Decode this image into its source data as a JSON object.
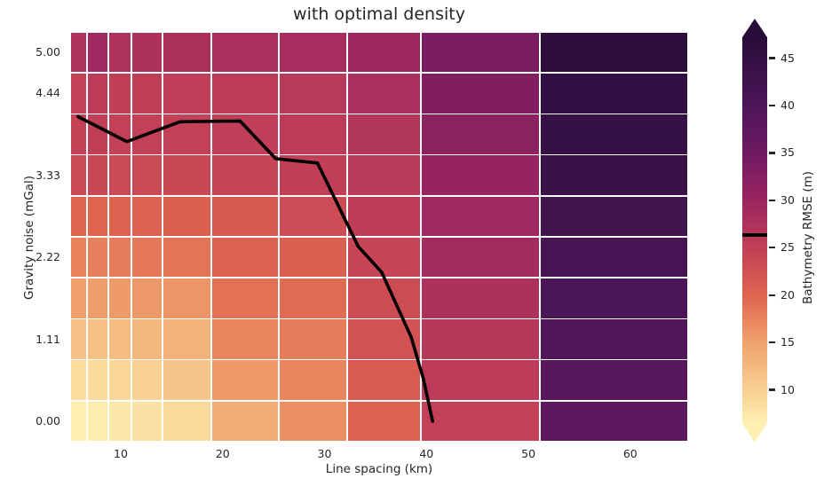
{
  "title": "with optimal density",
  "axes": {
    "xlabel": "Line spacing (km)",
    "ylabel": "Gravity noise (mGal)",
    "x_ticks": [
      {
        "value": 10,
        "label": "10"
      },
      {
        "value": 20,
        "label": "20"
      },
      {
        "value": 30,
        "label": "30"
      },
      {
        "value": 40,
        "label": "40"
      },
      {
        "value": 50,
        "label": "50"
      },
      {
        "value": 60,
        "label": "60"
      }
    ],
    "y_ticks": [
      {
        "value": 5.0,
        "label": "5.00"
      },
      {
        "value": 4.444,
        "label": "4.44"
      },
      {
        "value": 3.333,
        "label": "3.33"
      },
      {
        "value": 2.222,
        "label": "2.22"
      },
      {
        "value": 1.111,
        "label": "1.11"
      },
      {
        "value": 0.0,
        "label": "0.00"
      }
    ]
  },
  "colorbar": {
    "label": "Bathymetry RMSE (m)",
    "ticks": [
      {
        "value": 45,
        "label": "45"
      },
      {
        "value": 40,
        "label": "40"
      },
      {
        "value": 35,
        "label": "35"
      },
      {
        "value": 30,
        "label": "30"
      },
      {
        "value": 25,
        "label": "25"
      },
      {
        "value": 20,
        "label": "20"
      },
      {
        "value": 15,
        "label": "15"
      },
      {
        "value": 10,
        "label": "10"
      }
    ],
    "line_value": 26.3,
    "extend": "both"
  },
  "chart_data": {
    "type": "heatmap",
    "title": "with optimal density",
    "xlabel": "Line spacing (km)",
    "ylabel": "Gravity noise (mGal)",
    "colorbar_label": "Bathymetry RMSE (m)",
    "grid": "white cell edges",
    "colormap": "magma_r",
    "xlim": [
      5.03,
      65.68
    ],
    "ylim": [
      -0.278,
      5.278
    ],
    "x_centers_km": [
      6,
      7.5,
      10,
      12.5,
      16.5,
      22,
      29,
      36,
      45,
      58
    ],
    "x_edges_km": [
      5.03,
      6.69,
      8.78,
      11.05,
      14.09,
      18.89,
      25.51,
      32.22,
      39.46,
      51.13,
      65.68
    ],
    "y_centers_mgal": [
      0.0,
      0.556,
      1.111,
      1.667,
      2.222,
      2.778,
      3.333,
      3.889,
      4.444,
      5.0
    ],
    "y_edges_mgal": [
      -0.278,
      0.278,
      0.833,
      1.389,
      1.944,
      2.5,
      3.056,
      3.611,
      4.167,
      4.722,
      5.278
    ],
    "rows_order": "bottom-to-top (ascending gravity noise)",
    "values_rmse_m": [
      [
        6.6,
        6.9,
        7.3,
        8.0,
        8.9,
        13.7,
        16.4,
        20.2,
        24.9,
        37.5
      ],
      [
        8.6,
        8.8,
        9.2,
        9.8,
        11.2,
        15.6,
        17.2,
        21.3,
        25.8,
        38.4
      ],
      [
        11.6,
        11.8,
        12.1,
        12.6,
        13.2,
        17.3,
        18.0,
        22.3,
        26.6,
        39.2
      ],
      [
        15.2,
        15.4,
        15.6,
        15.8,
        16.0,
        18.9,
        19.4,
        23.2,
        27.7,
        40.0
      ],
      [
        17.5,
        17.7,
        18.0,
        18.3,
        18.7,
        20.3,
        20.5,
        24.1,
        28.9,
        41.0
      ],
      [
        19.8,
        20.0,
        20.2,
        20.4,
        20.7,
        21.4,
        23.3,
        25.4,
        29.5,
        42.2
      ],
      [
        23.5,
        23.7,
        23.6,
        23.6,
        23.7,
        24.2,
        25.0,
        26.0,
        30.4,
        43.6
      ],
      [
        24.6,
        25.1,
        24.8,
        24.8,
        24.9,
        25.2,
        25.7,
        27.0,
        31.5,
        44.5
      ],
      [
        24.9,
        25.7,
        25.1,
        25.1,
        25.2,
        25.6,
        26.2,
        28.0,
        33.0,
        45.4
      ],
      [
        27.3,
        29.3,
        27.5,
        27.6,
        27.8,
        28.1,
        28.5,
        29.8,
        33.7,
        46.8
      ]
    ],
    "color_scale": {
      "vmin": 6.5,
      "vmax": 47.2,
      "anchors": [
        [
          6.5,
          "#fdf0b2"
        ],
        [
          10,
          "#f9cf92"
        ],
        [
          15,
          "#f0a26c"
        ],
        [
          20,
          "#e06350"
        ],
        [
          25,
          "#c23f57"
        ],
        [
          30,
          "#9a2560"
        ],
        [
          35,
          "#701a62"
        ],
        [
          40,
          "#4c1558"
        ],
        [
          45,
          "#331043"
        ],
        [
          47.2,
          "#2a0c3b"
        ]
      ]
    },
    "contour": {
      "level_rmse_m": 26.3,
      "color": "#000000",
      "points_km_mgal": [
        [
          5.8,
          4.13
        ],
        [
          10.6,
          3.79
        ],
        [
          15.8,
          4.06
        ],
        [
          21.7,
          4.07
        ],
        [
          25.2,
          3.56
        ],
        [
          29.3,
          3.5
        ],
        [
          33.3,
          2.37
        ],
        [
          35.6,
          2.02
        ],
        [
          38.5,
          1.14
        ],
        [
          39.7,
          0.57
        ],
        [
          40.6,
          0.0
        ]
      ]
    }
  }
}
